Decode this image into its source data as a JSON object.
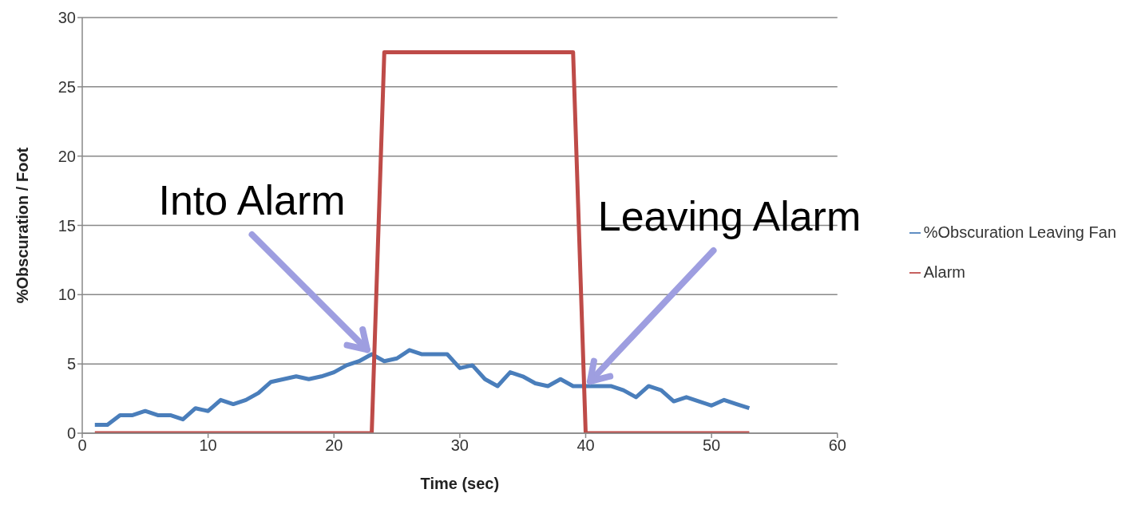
{
  "chart_data": {
    "type": "line",
    "xlabel": "Time (sec)",
    "ylabel": "%Obscuration  / Foot",
    "x": [
      1,
      2,
      3,
      4,
      5,
      6,
      7,
      8,
      9,
      10,
      11,
      12,
      13,
      14,
      15,
      16,
      17,
      18,
      19,
      20,
      21,
      22,
      23,
      24,
      25,
      26,
      27,
      28,
      29,
      30,
      31,
      32,
      33,
      34,
      35,
      36,
      37,
      38,
      39,
      40,
      41,
      42,
      43,
      44,
      45,
      46,
      47,
      48,
      49,
      50,
      51,
      52,
      53
    ],
    "series": [
      {
        "name": "%Obscuration Leaving Fan",
        "color": "#4a7ebb",
        "values": [
          0.6,
          0.6,
          1.3,
          1.3,
          1.6,
          1.3,
          1.3,
          1.0,
          1.8,
          1.6,
          2.4,
          2.1,
          2.4,
          2.9,
          3.7,
          3.9,
          4.1,
          3.9,
          4.1,
          4.4,
          4.9,
          5.2,
          5.7,
          5.2,
          5.4,
          6.0,
          5.7,
          5.7,
          5.7,
          4.7,
          4.9,
          3.9,
          3.4,
          4.4,
          4.1,
          3.6,
          3.4,
          3.9,
          3.4,
          3.4,
          3.4,
          3.4,
          3.1,
          2.6,
          3.4,
          3.1,
          2.3,
          2.6,
          2.3,
          2.0,
          2.4,
          2.1,
          1.8
        ]
      },
      {
        "name": "Alarm",
        "color": "#be4b48",
        "values": [
          0,
          0,
          0,
          0,
          0,
          0,
          0,
          0,
          0,
          0,
          0,
          0,
          0,
          0,
          0,
          0,
          0,
          0,
          0,
          0,
          0,
          0,
          0,
          27.5,
          27.5,
          27.5,
          27.5,
          27.5,
          27.5,
          27.5,
          27.5,
          27.5,
          27.5,
          27.5,
          27.5,
          27.5,
          27.5,
          27.5,
          27.5,
          0,
          0,
          0,
          0,
          0,
          0,
          0,
          0,
          0,
          0,
          0,
          0,
          0,
          0
        ]
      }
    ],
    "xlim": [
      0,
      60
    ],
    "xticks": [
      0,
      10,
      20,
      30,
      40,
      50,
      60
    ],
    "ylim": [
      0,
      30
    ],
    "yticks": [
      0,
      5,
      10,
      15,
      20,
      25,
      30
    ],
    "grid": "y",
    "legend": "right",
    "marker": "none",
    "line_style": "solid",
    "annotations": [
      {
        "text": "Into Alarm",
        "x": 23,
        "y": 5.7
      },
      {
        "text": "Leaving Alarm",
        "x": 40,
        "y": 3.4
      }
    ]
  }
}
